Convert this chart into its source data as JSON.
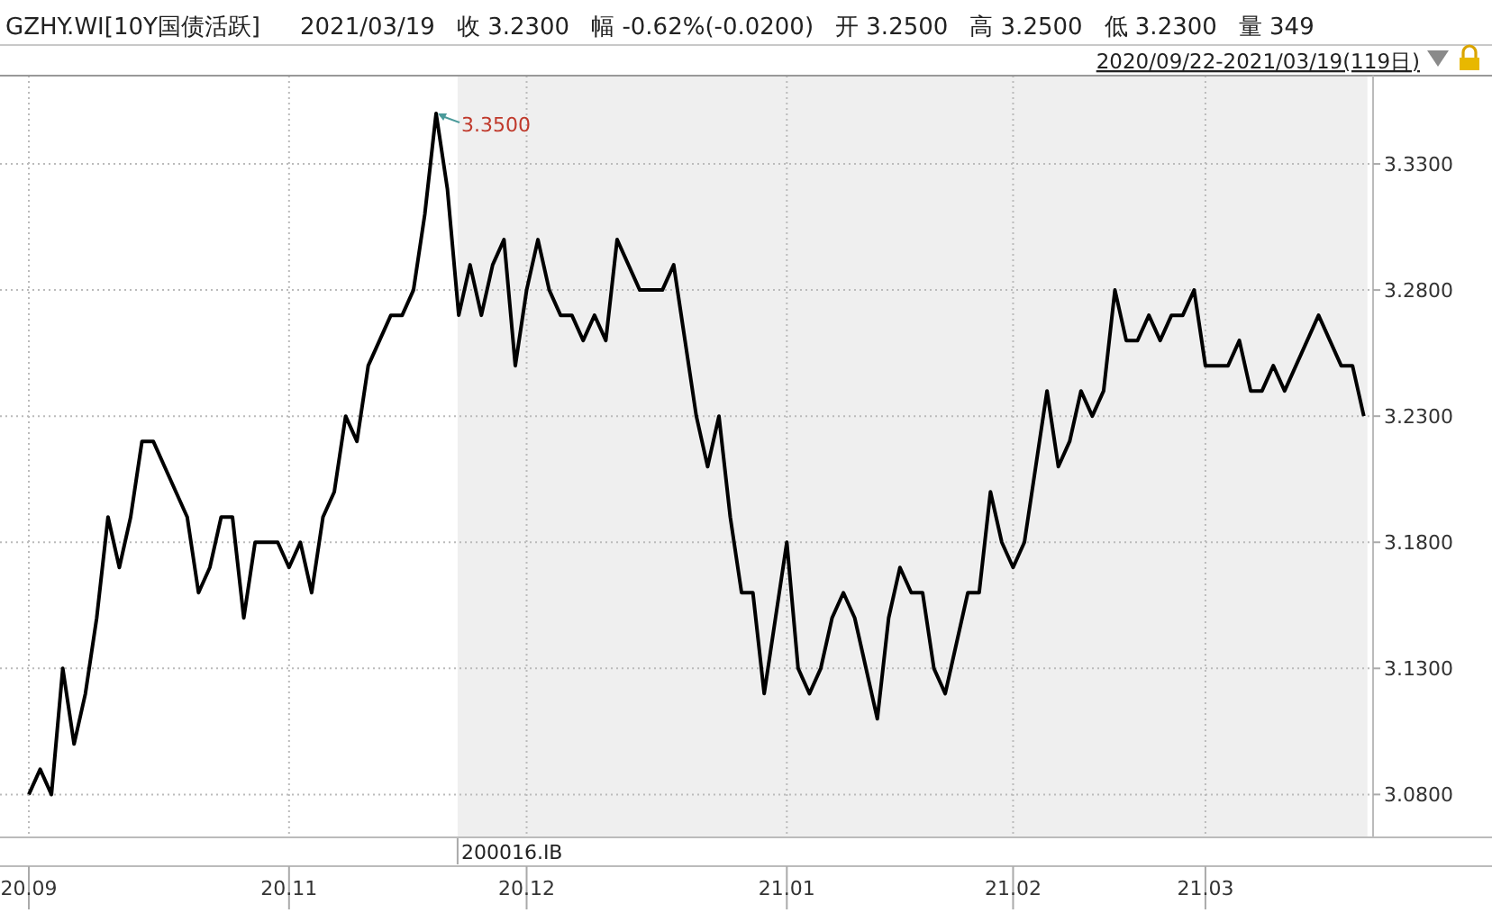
{
  "chart_data": {
    "type": "line",
    "title": "GZHY.WI[10Y国债活跃]",
    "subtitle": "2020/09/22-2021/03/19(119日)",
    "annotations": [
      "2021/03/19",
      "收 3.2300",
      "幅 -0.62%(-0.0200)",
      "开 3.2500",
      "高 3.2500",
      "低 3.2300",
      "量 349",
      "200016.IB",
      "3.3500"
    ],
    "categories": [
      "20.09",
      null,
      null,
      null,
      null,
      null,
      null,
      null,
      null,
      null,
      null,
      null,
      null,
      null,
      null,
      null,
      null,
      null,
      null,
      null,
      null,
      null,
      null,
      "20.11",
      null,
      null,
      null,
      null,
      null,
      null,
      null,
      null,
      null,
      null,
      null,
      null,
      null,
      null,
      null,
      null,
      null,
      null,
      null,
      null,
      "20.12",
      null,
      null,
      null,
      null,
      null,
      null,
      null,
      null,
      null,
      null,
      null,
      null,
      null,
      null,
      null,
      null,
      null,
      null,
      null,
      null,
      null,
      null,
      "21.01",
      null,
      null,
      null,
      null,
      null,
      null,
      null,
      null,
      null,
      null,
      null,
      null,
      null,
      null,
      null,
      null,
      null,
      null,
      null,
      "21.02",
      null,
      null,
      null,
      null,
      null,
      null,
      null,
      null,
      null,
      null,
      null,
      null,
      null,
      null,
      null,
      null,
      "21.03",
      null,
      null,
      null,
      null,
      null,
      null,
      null,
      null,
      null,
      null,
      null,
      null,
      null,
      null
    ],
    "series": [
      {
        "color": "#000000",
        "values": [
          3.08,
          3.09,
          3.08,
          3.13,
          3.1,
          3.12,
          3.15,
          3.19,
          3.17,
          3.19,
          3.22,
          3.22,
          3.21,
          3.2,
          3.19,
          3.16,
          3.17,
          3.19,
          3.19,
          3.15,
          3.18,
          3.18,
          3.18,
          3.17,
          3.18,
          3.16,
          3.19,
          3.2,
          3.23,
          3.22,
          3.25,
          3.26,
          3.27,
          3.27,
          3.28,
          3.31,
          3.35,
          3.32,
          3.27,
          3.29,
          3.27,
          3.29,
          3.3,
          3.25,
          3.28,
          3.3,
          3.28,
          3.27,
          3.27,
          3.26,
          3.27,
          3.26,
          3.3,
          3.29,
          3.28,
          3.28,
          3.28,
          3.29,
          3.26,
          3.23,
          3.21,
          3.23,
          3.19,
          3.16,
          3.16,
          3.12,
          3.15,
          3.18,
          3.13,
          3.12,
          3.13,
          3.15,
          3.16,
          3.15,
          3.13,
          3.11,
          3.15,
          3.17,
          3.16,
          3.16,
          3.13,
          3.12,
          3.14,
          3.16,
          3.16,
          3.2,
          3.18,
          3.17,
          3.18,
          3.21,
          3.24,
          3.21,
          3.22,
          3.24,
          3.23,
          3.24,
          3.28,
          3.26,
          3.26,
          3.27,
          3.26,
          3.27,
          3.27,
          3.28,
          3.25,
          3.25,
          3.25,
          3.26,
          3.24,
          3.24,
          3.25,
          3.24,
          3.25,
          3.26,
          3.27,
          3.26,
          3.25,
          3.25,
          3.23
        ]
      }
    ],
    "ylim": [
      3.063,
      3.365
    ],
    "yticks": [
      {
        "value": 3.08,
        "label": "3.0800"
      },
      {
        "value": 3.13,
        "label": "3.1300"
      },
      {
        "value": 3.18,
        "label": "3.1800"
      },
      {
        "value": 3.23,
        "label": "3.2300"
      },
      {
        "value": 3.28,
        "label": "3.2800"
      },
      {
        "value": 3.33,
        "label": "3.3300"
      }
    ],
    "grid": true,
    "marker": "none",
    "line_style": "solid"
  }
}
